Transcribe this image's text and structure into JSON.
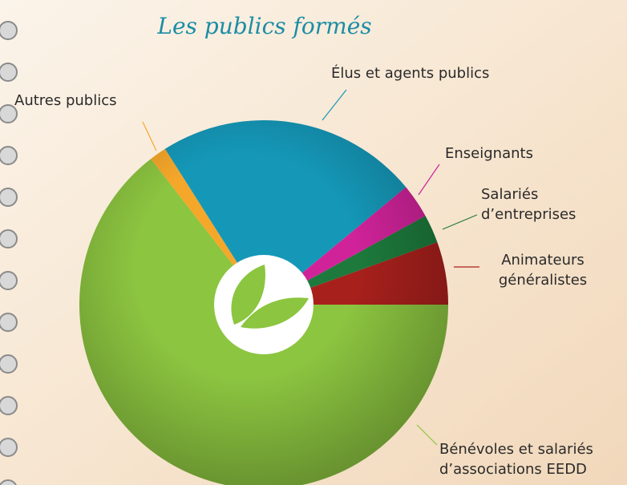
{
  "chart_data": {
    "type": "pie",
    "title": "Les publics formés",
    "categories": [
      "Animateurs\ngénéralistes",
      "Salariés\nd’entreprises",
      "Enseignants",
      "Élus et agents publics",
      "Autres publics",
      "Bénévoles et salariés\nd’associations EEDD"
    ],
    "values": [
      5.5,
      2.5,
      3,
      23,
      1.5,
      64.5
    ],
    "colors": [
      "#a8201c",
      "#1d7a3c",
      "#d0239a",
      "#1598b8",
      "#f5a72a",
      "#8cc540"
    ]
  }
}
